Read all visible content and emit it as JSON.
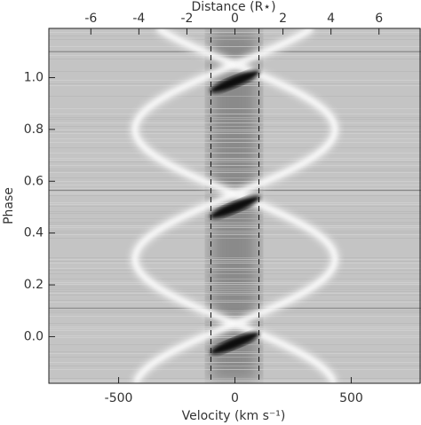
{
  "chart_data": {
    "type": "image",
    "xlabel": "Velocity (km s⁻¹)",
    "x2label": "Distance (R⋆)",
    "ylabel": "Phase",
    "xlim": [
      -800,
      800
    ],
    "xticks": [
      -500,
      0,
      500
    ],
    "x2lim": [
      -7.75,
      7.75
    ],
    "x2ticks": [
      -6,
      -4,
      -2,
      0,
      2,
      4,
      6
    ],
    "ylim": [
      -0.18,
      1.19
    ],
    "yticks": [
      {
        "value": 0,
        "label": "0.0"
      },
      0.2,
      0.4,
      0.6,
      0.8,
      {
        "value": 1,
        "label": "1.0"
      }
    ],
    "x2_dashed_lines": [
      -1,
      1
    ]
  }
}
